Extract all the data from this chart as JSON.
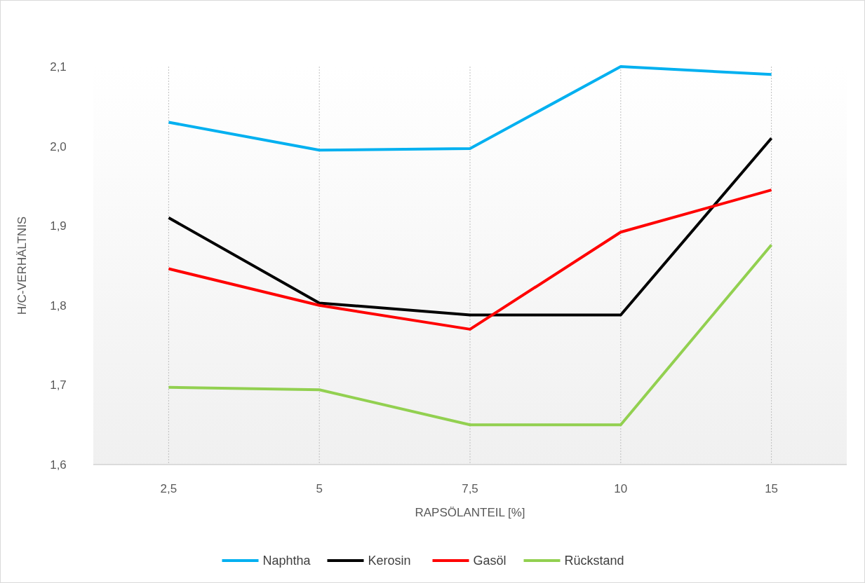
{
  "chart_data": {
    "type": "line",
    "xlabel": "RAPSÖLANTEIL [%]",
    "ylabel": "H/C-VERHÄLTNIS",
    "categories": [
      "2,5",
      "5",
      "7,5",
      "10",
      "15"
    ],
    "series": [
      {
        "name": "Naphtha",
        "color": "#00b0f0",
        "values": [
          2.03,
          1.995,
          1.997,
          2.1,
          2.09
        ]
      },
      {
        "name": "Kerosin",
        "color": "#000000",
        "values": [
          1.91,
          1.803,
          1.788,
          1.788,
          2.01
        ]
      },
      {
        "name": "Gasöl",
        "color": "#ff0000",
        "values": [
          1.846,
          1.8,
          1.77,
          1.892,
          1.945
        ]
      },
      {
        "name": "Rückstand",
        "color": "#92d050",
        "values": [
          1.697,
          1.694,
          1.65,
          1.65,
          1.876
        ]
      }
    ],
    "ylim": [
      1.6,
      2.1
    ],
    "yticks": [
      {
        "value": 1.6,
        "label": "1,6"
      },
      {
        "value": 1.7,
        "label": "1,7"
      },
      {
        "value": 1.8,
        "label": "1,8"
      },
      {
        "value": 1.9,
        "label": "1,9"
      },
      {
        "value": 2.0,
        "label": "2,0"
      },
      {
        "value": 2.1,
        "label": "2,1"
      }
    ],
    "grid": "x",
    "legend": "bottom",
    "line_style": "solid"
  }
}
